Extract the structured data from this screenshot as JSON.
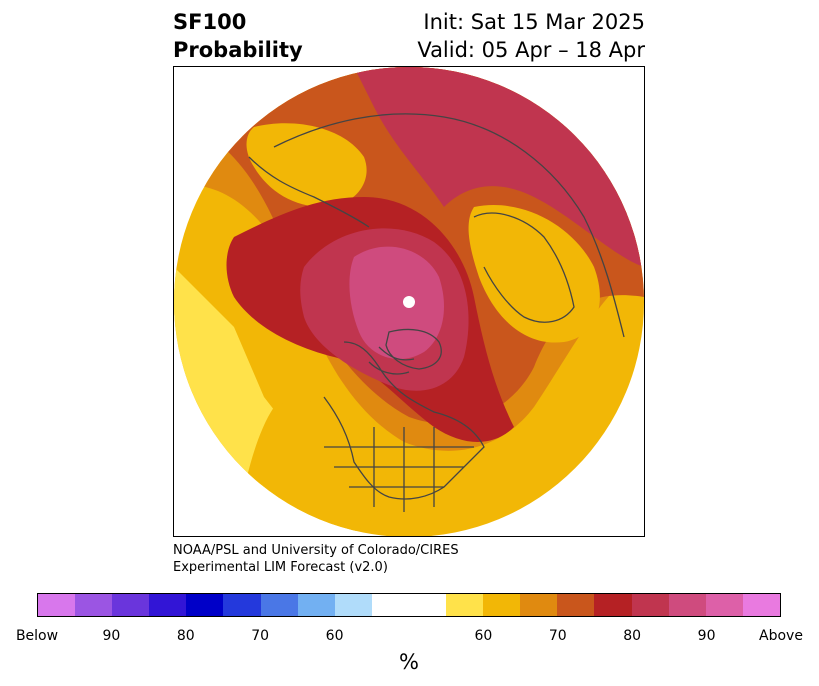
{
  "title": {
    "product": "SF100",
    "subtitle": "Probability",
    "init": "Init: Sat 15 Mar 2025",
    "valid": "Valid: 05 Apr – 18 Apr"
  },
  "credit": {
    "line1": "NOAA/PSL and University of Colorado/CIRES",
    "line2": "Experimental LIM Forecast (v2.0)"
  },
  "colorbar": {
    "unit_label": "%",
    "below_colors": [
      "#d877ec",
      "#9b55e3",
      "#6a35dc",
      "#3215d6",
      "#0000c8",
      "#2439dc",
      "#4a77e6",
      "#72b0f2",
      "#b0dcfa"
    ],
    "above_colors": [
      "#ffe24a",
      "#f2b706",
      "#e08a10",
      "#c9561c",
      "#b52124",
      "#c0354f",
      "#cf4b7e",
      "#dd60a8",
      "#e97ae0"
    ],
    "tick_labels": [
      "Below",
      "90",
      "80",
      "70",
      "60",
      "60",
      "70",
      "80",
      "90",
      "Above"
    ]
  },
  "map": {
    "projection": "north-polar-stereographic",
    "field_colors": {
      "gold": "#f2b706",
      "yellow": "#ffe24a",
      "orange": "#e08a10",
      "burnt_orange": "#c9561c",
      "red": "#b52124",
      "crimson": "#c0354f",
      "pink": "#cf4b7e"
    },
    "coastline_color": "#444444"
  }
}
